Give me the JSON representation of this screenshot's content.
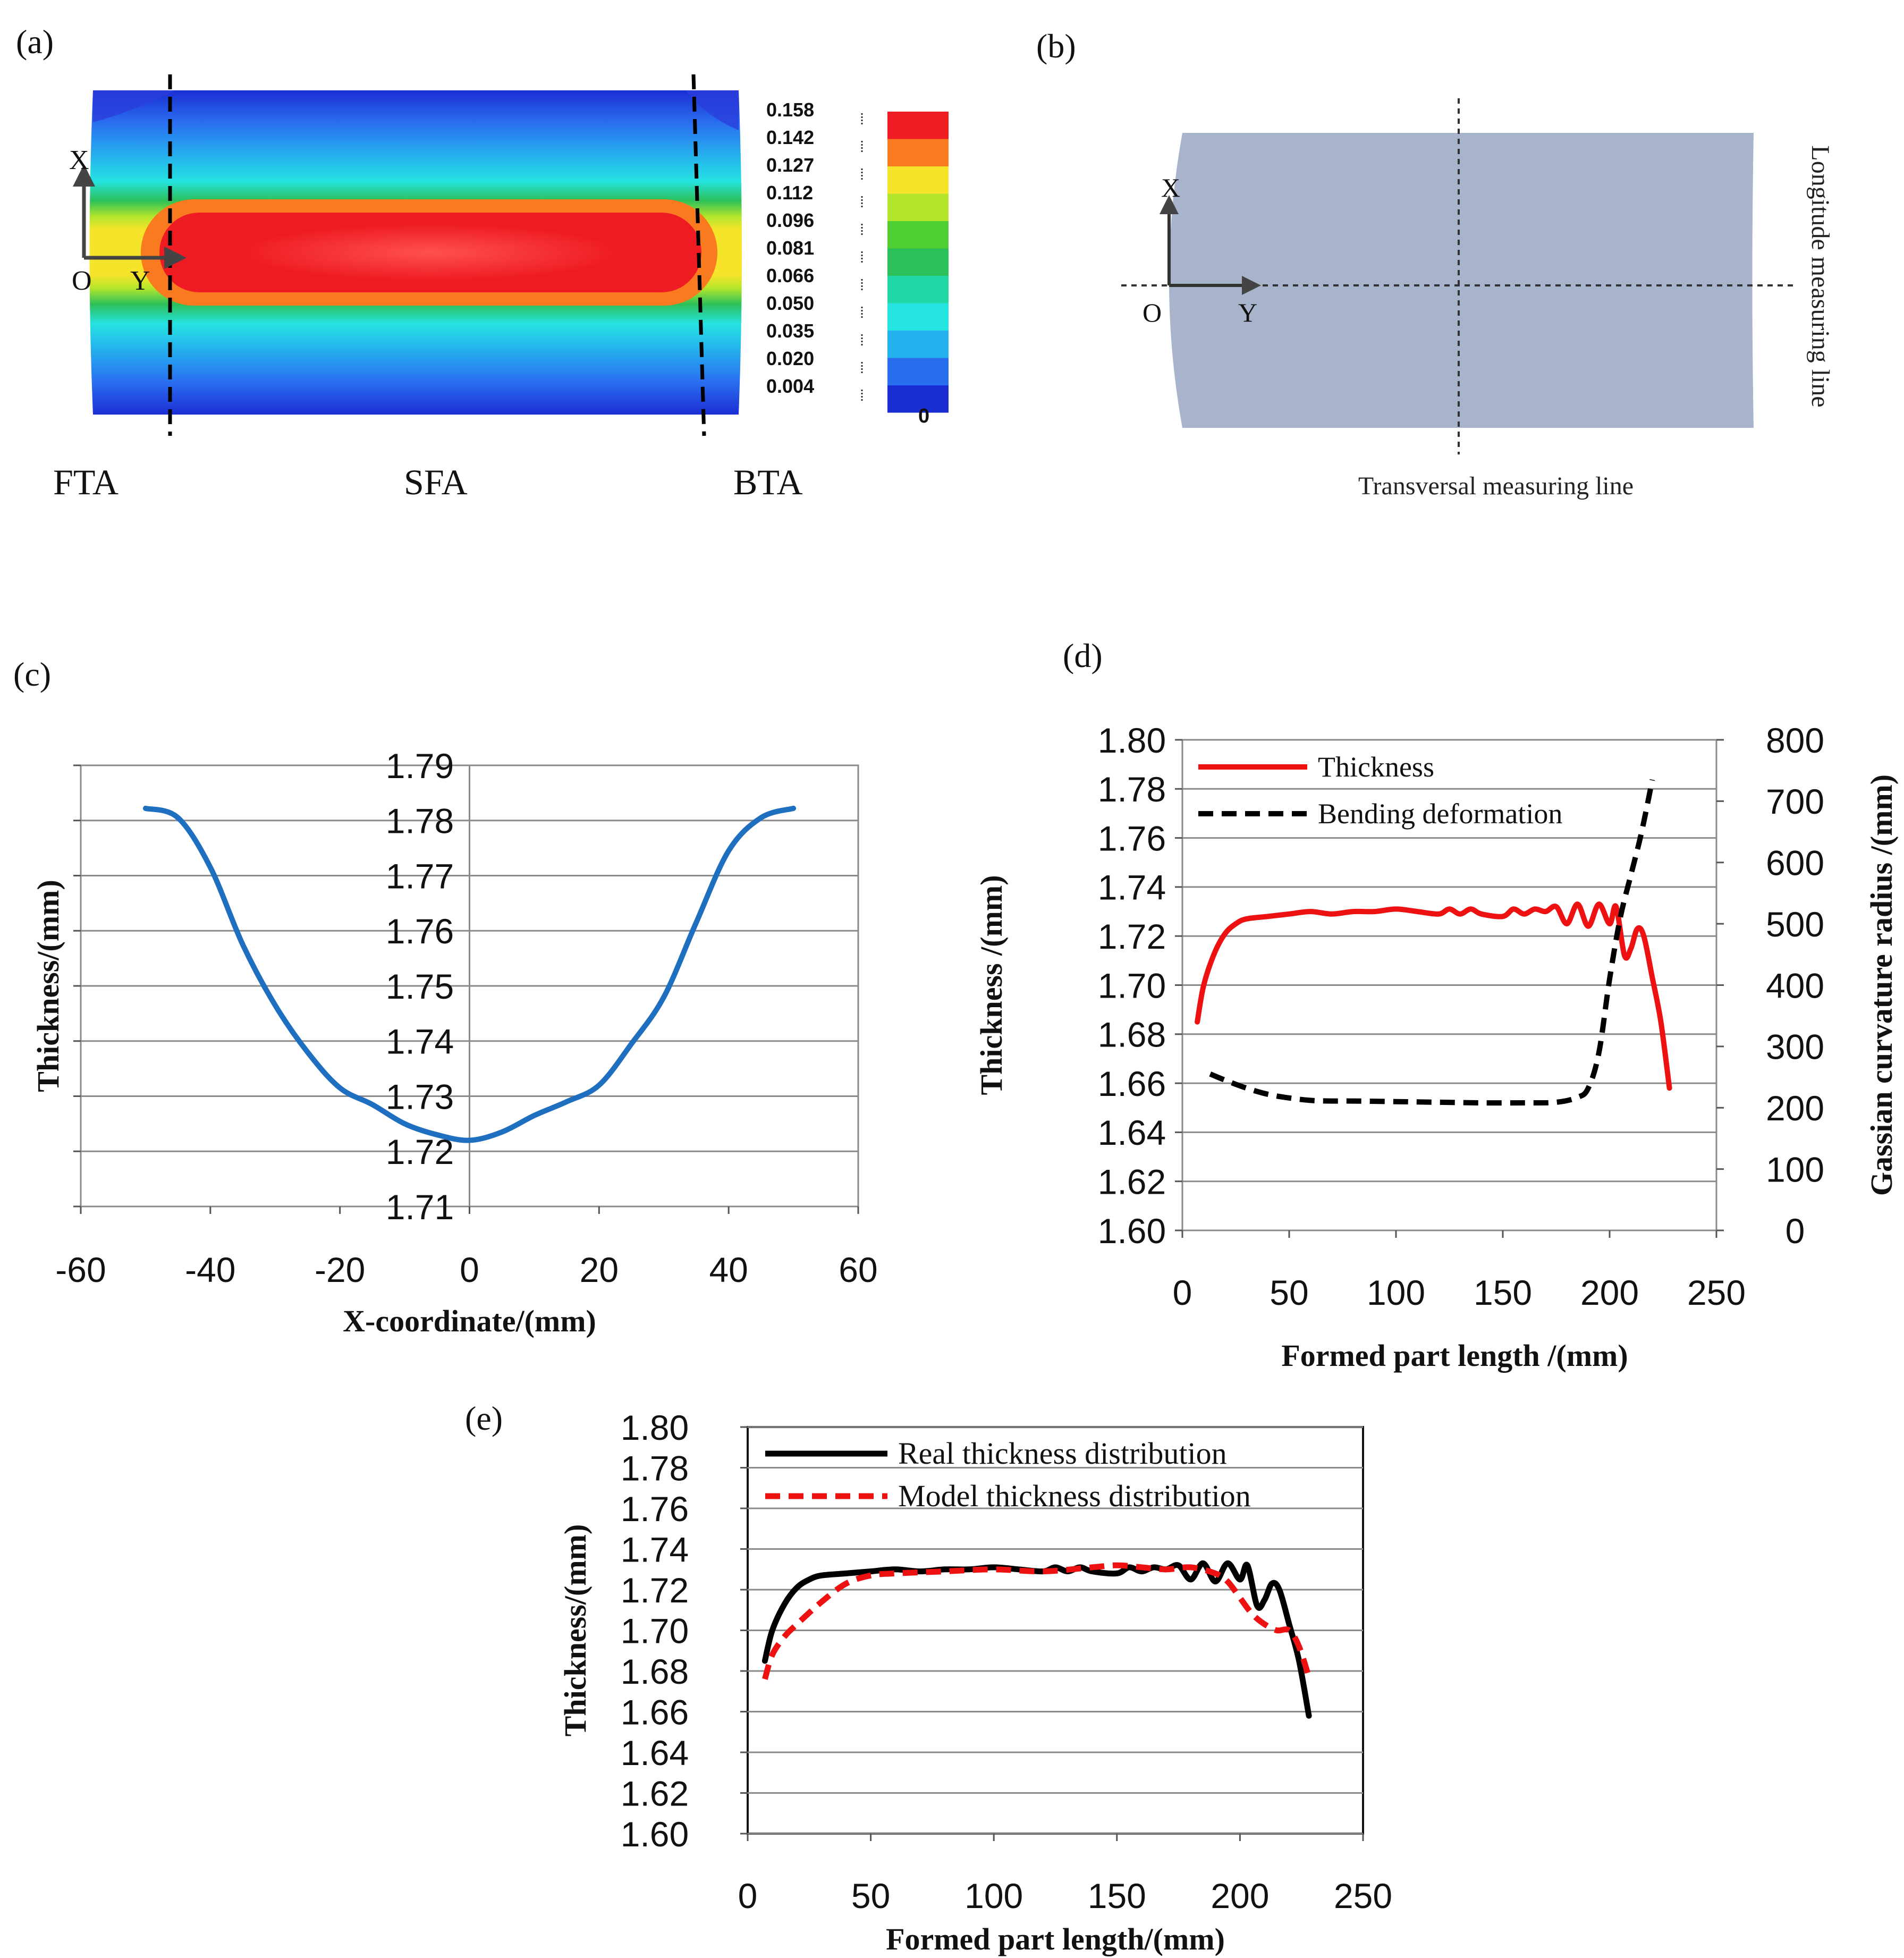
{
  "panel_labels": {
    "a": "(a)",
    "b": "(b)",
    "c": "(c)",
    "d": "(d)",
    "e": "(e)"
  },
  "panel_a": {
    "axis_labels": {
      "x": "X",
      "origin": "O",
      "y": "Y"
    },
    "zones": [
      "FTA",
      "SFA",
      "BTA"
    ],
    "legend_values": [
      "0.158",
      "0.142",
      "0.127",
      "0.112",
      "0.096",
      "0.081",
      "0.066",
      "0.050",
      "0.035",
      "0.020",
      "0.004"
    ],
    "legend_zero": "0",
    "legend_colors": [
      "#ee1c22",
      "#f97a1f",
      "#f5e42a",
      "#b4e62c",
      "#4fce34",
      "#2cc05a",
      "#22d7a6",
      "#25e3e1",
      "#25b0ee",
      "#2a6ef0",
      "#1b2ed3"
    ]
  },
  "panel_b": {
    "axis_labels": {
      "x": "X",
      "origin": "O",
      "y": "Y"
    },
    "longitude_label": "Longitude measuring line",
    "transversal_label": "Transversal measuring line",
    "sheet_color": "#a8b3cc"
  },
  "chart_data": [
    {
      "id": "c",
      "type": "line",
      "title": "",
      "xlabel": "X-coordinate/(mm)",
      "ylabel": "Thickness/(mm)",
      "xlim": [
        -60,
        60
      ],
      "ylim": [
        1.71,
        1.79
      ],
      "xticks": [
        -60,
        -40,
        -20,
        0,
        20,
        40,
        60
      ],
      "yticks": [
        1.71,
        1.72,
        1.73,
        1.74,
        1.75,
        1.76,
        1.77,
        1.78,
        1.79
      ],
      "xtick_labels": [
        "-60",
        "-40",
        "-20",
        "0",
        "20",
        "40",
        "60"
      ],
      "ytick_labels": [
        "1.71",
        "1.72",
        "1.73",
        "1.74",
        "1.75",
        "1.76",
        "1.77",
        "1.78",
        "1.79"
      ],
      "grid": true,
      "series": [
        {
          "name": "Thickness",
          "color": "#1f6fc0",
          "x": [
            -50,
            -45,
            -40,
            -35,
            -30,
            -25,
            -20,
            -15,
            -10,
            -5,
            0,
            5,
            10,
            15,
            20,
            25,
            30,
            35,
            40,
            45,
            50
          ],
          "y": [
            1.7822,
            1.7805,
            1.7715,
            1.7575,
            1.7465,
            1.738,
            1.7315,
            1.7285,
            1.725,
            1.723,
            1.722,
            1.7235,
            1.7265,
            1.729,
            1.732,
            1.7395,
            1.748,
            1.7615,
            1.7745,
            1.7805,
            1.7822
          ]
        }
      ]
    },
    {
      "id": "d",
      "type": "line",
      "title": "",
      "xlabel": "Formed part length /(mm)",
      "ylabel": "Thickness /(mm)",
      "y2label": "Gassian curvature radius /(mm)",
      "xlim": [
        0,
        250
      ],
      "ylim": [
        1.6,
        1.8
      ],
      "y2lim": [
        0,
        800
      ],
      "xticks": [
        0,
        50,
        100,
        150,
        200,
        250
      ],
      "yticks": [
        1.6,
        1.62,
        1.64,
        1.66,
        1.68,
        1.7,
        1.72,
        1.74,
        1.76,
        1.78,
        1.8
      ],
      "y2ticks": [
        0,
        100,
        200,
        300,
        400,
        500,
        600,
        700,
        800
      ],
      "xtick_labels": [
        "0",
        "50",
        "100",
        "150",
        "200",
        "250"
      ],
      "ytick_labels": [
        "1.60",
        "1.62",
        "1.64",
        "1.66",
        "1.68",
        "1.70",
        "1.72",
        "1.74",
        "1.76",
        "1.78",
        "1.80"
      ],
      "y2tick_labels": [
        "0",
        "100",
        "200",
        "300",
        "400",
        "500",
        "600",
        "700",
        "800"
      ],
      "grid": true,
      "legend_position": "top-left",
      "series": [
        {
          "name": "Thickness",
          "color": "#ee1111",
          "style": "solid",
          "axis": "left",
          "x": [
            7,
            10,
            15,
            20,
            25,
            30,
            40,
            50,
            60,
            70,
            80,
            90,
            100,
            110,
            120,
            125,
            130,
            135,
            140,
            150,
            155,
            160,
            165,
            170,
            175,
            180,
            185,
            190,
            195,
            200,
            203,
            207,
            210,
            213,
            216,
            220,
            224,
            228
          ],
          "y": [
            1.685,
            1.7,
            1.713,
            1.721,
            1.725,
            1.727,
            1.728,
            1.729,
            1.73,
            1.729,
            1.73,
            1.73,
            1.731,
            1.73,
            1.729,
            1.731,
            1.729,
            1.731,
            1.729,
            1.728,
            1.731,
            1.729,
            1.731,
            1.73,
            1.732,
            1.725,
            1.733,
            1.724,
            1.733,
            1.725,
            1.732,
            1.712,
            1.715,
            1.723,
            1.72,
            1.703,
            1.685,
            1.658
          ]
        },
        {
          "name": "Bending deformation",
          "color": "#000000",
          "style": "dashed",
          "axis": "right",
          "x": [
            13,
            20,
            30,
            40,
            50,
            60,
            70,
            80,
            100,
            120,
            140,
            160,
            175,
            185,
            190,
            195,
            200,
            205,
            210,
            215,
            220
          ],
          "y": [
            255,
            245,
            232,
            222,
            216,
            212,
            211,
            211,
            210,
            209,
            208,
            208,
            209,
            217,
            232,
            290,
            410,
            510,
            580,
            650,
            735
          ]
        }
      ]
    },
    {
      "id": "e",
      "type": "line",
      "title": "",
      "xlabel": "Formed part length/(mm)",
      "ylabel": "Thickness/(mm)",
      "xlim": [
        0,
        250
      ],
      "ylim": [
        1.6,
        1.8
      ],
      "xticks": [
        0,
        50,
        100,
        150,
        200,
        250
      ],
      "yticks": [
        1.6,
        1.62,
        1.64,
        1.66,
        1.68,
        1.7,
        1.72,
        1.74,
        1.76,
        1.78,
        1.8
      ],
      "xtick_labels": [
        "0",
        "50",
        "100",
        "150",
        "200",
        "250"
      ],
      "ytick_labels": [
        "1.60",
        "1.62",
        "1.64",
        "1.66",
        "1.68",
        "1.70",
        "1.72",
        "1.74",
        "1.76",
        "1.78",
        "1.80"
      ],
      "grid": true,
      "legend_position": "top-left",
      "series": [
        {
          "name": "Real thickness distribution",
          "color": "#000000",
          "style": "solid",
          "x": [
            7,
            10,
            15,
            20,
            25,
            30,
            40,
            50,
            60,
            70,
            80,
            90,
            100,
            110,
            120,
            125,
            130,
            135,
            140,
            150,
            155,
            160,
            165,
            170,
            175,
            180,
            185,
            190,
            195,
            200,
            203,
            207,
            210,
            213,
            216,
            220,
            224,
            228
          ],
          "y": [
            1.685,
            1.7,
            1.713,
            1.721,
            1.725,
            1.727,
            1.728,
            1.729,
            1.73,
            1.729,
            1.73,
            1.73,
            1.731,
            1.73,
            1.729,
            1.731,
            1.729,
            1.731,
            1.729,
            1.728,
            1.731,
            1.729,
            1.731,
            1.73,
            1.732,
            1.725,
            1.733,
            1.724,
            1.733,
            1.725,
            1.732,
            1.712,
            1.715,
            1.723,
            1.72,
            1.703,
            1.685,
            1.658
          ]
        },
        {
          "name": "Model thickness distribution",
          "color": "#ee1111",
          "style": "dashed",
          "x": [
            7,
            10,
            15,
            20,
            30,
            40,
            50,
            60,
            80,
            100,
            120,
            140,
            150,
            160,
            170,
            180,
            190,
            195,
            200,
            205,
            210,
            215,
            220,
            224,
            228
          ],
          "y": [
            1.676,
            1.688,
            1.697,
            1.703,
            1.714,
            1.723,
            1.727,
            1.728,
            1.729,
            1.73,
            1.729,
            1.731,
            1.732,
            1.731,
            1.73,
            1.731,
            1.728,
            1.724,
            1.716,
            1.708,
            1.703,
            1.7,
            1.7,
            1.692,
            1.677
          ]
        }
      ]
    }
  ]
}
